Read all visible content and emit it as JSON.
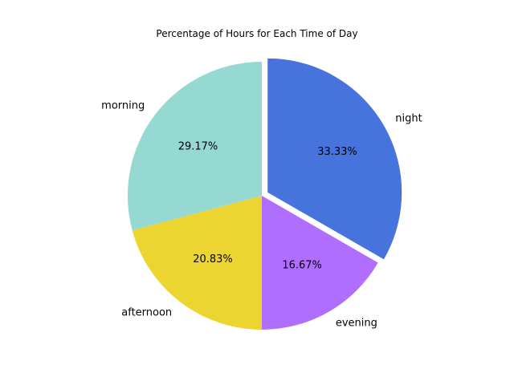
{
  "chart_data": {
    "type": "pie",
    "title": "Percentage of Hours for Each Time of Day",
    "categories": [
      "night",
      "evening",
      "afternoon",
      "morning"
    ],
    "values": [
      33.33,
      16.67,
      20.83,
      29.17
    ],
    "value_labels": [
      "33.33%",
      "16.67%",
      "20.83%",
      "29.17%"
    ],
    "colors": [
      "#4674dc",
      "#b06efe",
      "#ecd431",
      "#96d9d3"
    ],
    "explode": [
      0.05,
      0,
      0,
      0
    ],
    "start_angle_deg": 90,
    "direction": "clockwise",
    "legend": "none"
  }
}
